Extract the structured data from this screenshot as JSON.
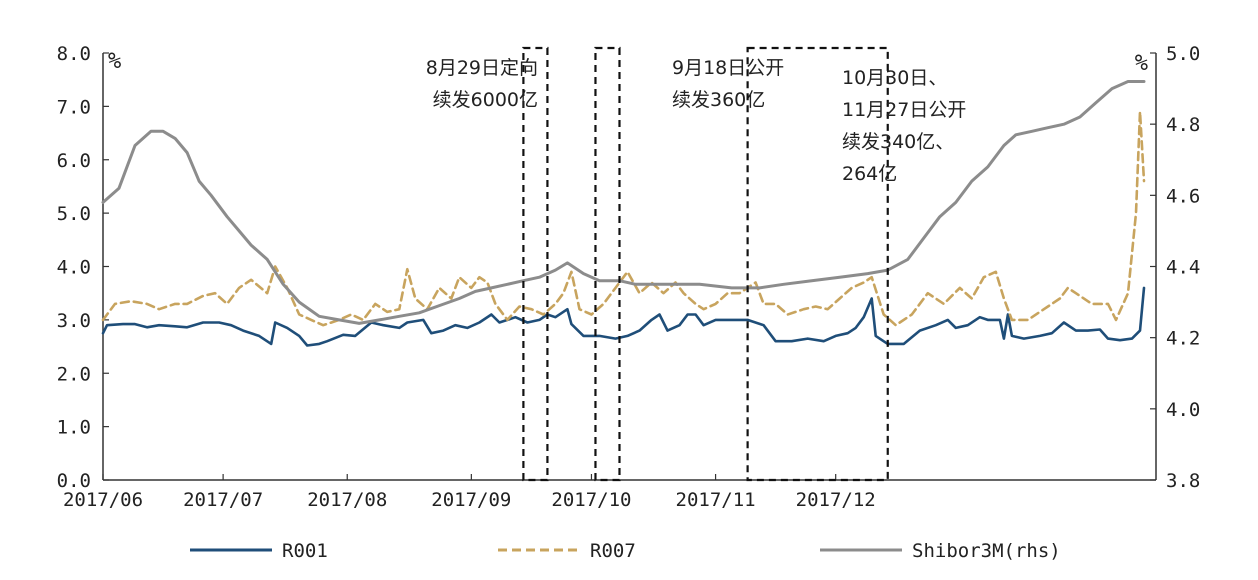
{
  "chart_data": {
    "type": "line",
    "title": "",
    "xlabel": "",
    "ylabel": "%",
    "ylabel_right": "%",
    "ylim": [
      0,
      8
    ],
    "ylim_right": [
      3.8,
      5.0
    ],
    "left_ticks": [
      "0.0",
      "1.0",
      "2.0",
      "3.0",
      "4.0",
      "5.0",
      "6.0",
      "7.0",
      "8.0"
    ],
    "right_ticks": [
      "3.8",
      "4.0",
      "4.2",
      "4.4",
      "4.6",
      "4.8",
      "5.0"
    ],
    "x_ticks": [
      "2017/06",
      "2017/07",
      "2017/08",
      "2017/09",
      "2017/10",
      "2017/11",
      "2017/12"
    ],
    "x_tick_dates": [
      "2017-06-01",
      "2017-07-01",
      "2017-08-01",
      "2017-09-01",
      "2017-10-01",
      "2017-11-01",
      "2017-12-01"
    ],
    "legend_position": "bottom",
    "grid": false,
    "series": [
      {
        "name": "R001",
        "axis": "left",
        "color": "#1f4e79",
        "dash": "solid",
        "points": [
          [
            "2017-06-01",
            2.75
          ],
          [
            "2017-06-02",
            2.9
          ],
          [
            "2017-06-06",
            2.92
          ],
          [
            "2017-06-09",
            2.92
          ],
          [
            "2017-06-12",
            2.86
          ],
          [
            "2017-06-15",
            2.9
          ],
          [
            "2017-06-19",
            2.88
          ],
          [
            "2017-06-22",
            2.86
          ],
          [
            "2017-06-26",
            2.95
          ],
          [
            "2017-06-30",
            2.95
          ],
          [
            "2017-07-03",
            2.9
          ],
          [
            "2017-07-06",
            2.8
          ],
          [
            "2017-07-10",
            2.7
          ],
          [
            "2017-07-13",
            2.55
          ],
          [
            "2017-07-14",
            2.95
          ],
          [
            "2017-07-17",
            2.85
          ],
          [
            "2017-07-20",
            2.7
          ],
          [
            "2017-07-22",
            2.52
          ],
          [
            "2017-07-25",
            2.55
          ],
          [
            "2017-07-27",
            2.6
          ],
          [
            "2017-07-31",
            2.72
          ],
          [
            "2017-08-03",
            2.7
          ],
          [
            "2017-08-07",
            2.95
          ],
          [
            "2017-08-10",
            2.9
          ],
          [
            "2017-08-14",
            2.85
          ],
          [
            "2017-08-16",
            2.95
          ],
          [
            "2017-08-20",
            3.0
          ],
          [
            "2017-08-22",
            2.75
          ],
          [
            "2017-08-25",
            2.8
          ],
          [
            "2017-08-28",
            2.9
          ],
          [
            "2017-08-31",
            2.85
          ],
          [
            "2017-09-03",
            2.95
          ],
          [
            "2017-09-06",
            3.1
          ],
          [
            "2017-09-08",
            2.95
          ],
          [
            "2017-09-10",
            3.0
          ],
          [
            "2017-09-12",
            3.05
          ],
          [
            "2017-09-15",
            2.95
          ],
          [
            "2017-09-18",
            3.0
          ],
          [
            "2017-09-20",
            3.1
          ],
          [
            "2017-09-22",
            3.05
          ],
          [
            "2017-09-25",
            3.2
          ],
          [
            "2017-09-26",
            2.92
          ],
          [
            "2017-09-29",
            2.7
          ],
          [
            "2017-10-03",
            2.7
          ],
          [
            "2017-10-07",
            2.65
          ],
          [
            "2017-10-10",
            2.7
          ],
          [
            "2017-10-13",
            2.8
          ],
          [
            "2017-10-16",
            3.0
          ],
          [
            "2017-10-18",
            3.1
          ],
          [
            "2017-10-20",
            2.8
          ],
          [
            "2017-10-23",
            2.9
          ],
          [
            "2017-10-25",
            3.1
          ],
          [
            "2017-10-27",
            3.1
          ],
          [
            "2017-10-29",
            2.9
          ],
          [
            "2017-11-01",
            3.0
          ],
          [
            "2017-11-05",
            3.0
          ],
          [
            "2017-11-09",
            3.0
          ],
          [
            "2017-11-13",
            2.9
          ],
          [
            "2017-11-16",
            2.6
          ],
          [
            "2017-11-20",
            2.6
          ],
          [
            "2017-11-24",
            2.65
          ],
          [
            "2017-11-28",
            2.6
          ],
          [
            "2017-12-01",
            2.7
          ],
          [
            "2017-12-04",
            2.75
          ],
          [
            "2017-12-06",
            2.85
          ],
          [
            "2017-12-08",
            3.05
          ],
          [
            "2017-12-10",
            3.4
          ],
          [
            "2017-12-11",
            2.7
          ],
          [
            "2017-12-14",
            2.55
          ],
          [
            "2017-12-18",
            2.55
          ],
          [
            "2017-12-22",
            2.8
          ],
          [
            "2017-12-26",
            2.9
          ],
          [
            "2017-12-29",
            3.0
          ],
          [
            "2017-12-31",
            2.85
          ],
          [
            "2018-01-03",
            2.9
          ],
          [
            "2018-01-06",
            3.05
          ],
          [
            "2018-01-08",
            3.0
          ],
          [
            "2018-01-11",
            3.0
          ],
          [
            "2018-01-12",
            2.65
          ],
          [
            "2018-01-13",
            3.1
          ],
          [
            "2018-01-14",
            2.7
          ],
          [
            "2018-01-17",
            2.65
          ],
          [
            "2018-01-21",
            2.7
          ],
          [
            "2018-01-24",
            2.75
          ],
          [
            "2018-01-27",
            2.95
          ],
          [
            "2018-01-30",
            2.8
          ],
          [
            "2018-02-02",
            2.8
          ],
          [
            "2018-02-05",
            2.82
          ],
          [
            "2018-02-07",
            2.65
          ],
          [
            "2018-02-10",
            2.62
          ],
          [
            "2018-02-13",
            2.65
          ],
          [
            "2018-02-15",
            2.8
          ],
          [
            "2018-02-16",
            3.6
          ]
        ]
      },
      {
        "name": "R007",
        "axis": "left",
        "color": "#c8a45e",
        "dash": "dashed",
        "points": [
          [
            "2017-06-01",
            3.0
          ],
          [
            "2017-06-04",
            3.3
          ],
          [
            "2017-06-08",
            3.35
          ],
          [
            "2017-06-12",
            3.3
          ],
          [
            "2017-06-15",
            3.2
          ],
          [
            "2017-06-19",
            3.3
          ],
          [
            "2017-06-22",
            3.3
          ],
          [
            "2017-06-26",
            3.45
          ],
          [
            "2017-06-29",
            3.5
          ],
          [
            "2017-07-02",
            3.3
          ],
          [
            "2017-07-05",
            3.6
          ],
          [
            "2017-07-08",
            3.75
          ],
          [
            "2017-07-12",
            3.5
          ],
          [
            "2017-07-14",
            4.0
          ],
          [
            "2017-07-17",
            3.6
          ],
          [
            "2017-07-20",
            3.1
          ],
          [
            "2017-07-23",
            3.0
          ],
          [
            "2017-07-26",
            2.9
          ],
          [
            "2017-07-30",
            3.0
          ],
          [
            "2017-08-02",
            3.1
          ],
          [
            "2017-08-05",
            3.0
          ],
          [
            "2017-08-08",
            3.3
          ],
          [
            "2017-08-11",
            3.15
          ],
          [
            "2017-08-14",
            3.2
          ],
          [
            "2017-08-16",
            3.95
          ],
          [
            "2017-08-18",
            3.4
          ],
          [
            "2017-08-21",
            3.2
          ],
          [
            "2017-08-24",
            3.6
          ],
          [
            "2017-08-27",
            3.4
          ],
          [
            "2017-08-29",
            3.8
          ],
          [
            "2017-09-01",
            3.6
          ],
          [
            "2017-09-03",
            3.8
          ],
          [
            "2017-09-05",
            3.7
          ],
          [
            "2017-09-07",
            3.3
          ],
          [
            "2017-09-10",
            3.0
          ],
          [
            "2017-09-13",
            3.25
          ],
          [
            "2017-09-16",
            3.2
          ],
          [
            "2017-09-19",
            3.1
          ],
          [
            "2017-09-22",
            3.3
          ],
          [
            "2017-09-24",
            3.5
          ],
          [
            "2017-09-26",
            3.9
          ],
          [
            "2017-09-28",
            3.2
          ],
          [
            "2017-10-01",
            3.1
          ],
          [
            "2017-10-04",
            3.3
          ],
          [
            "2017-10-07",
            3.6
          ],
          [
            "2017-10-10",
            3.9
          ],
          [
            "2017-10-13",
            3.5
          ],
          [
            "2017-10-16",
            3.7
          ],
          [
            "2017-10-19",
            3.5
          ],
          [
            "2017-10-22",
            3.7
          ],
          [
            "2017-10-24",
            3.5
          ],
          [
            "2017-10-27",
            3.3
          ],
          [
            "2017-10-29",
            3.2
          ],
          [
            "2017-11-01",
            3.3
          ],
          [
            "2017-11-04",
            3.5
          ],
          [
            "2017-11-07",
            3.5
          ],
          [
            "2017-11-11",
            3.7
          ],
          [
            "2017-11-13",
            3.3
          ],
          [
            "2017-11-16",
            3.3
          ],
          [
            "2017-11-19",
            3.1
          ],
          [
            "2017-11-23",
            3.2
          ],
          [
            "2017-11-26",
            3.25
          ],
          [
            "2017-11-29",
            3.2
          ],
          [
            "2017-12-02",
            3.4
          ],
          [
            "2017-12-05",
            3.6
          ],
          [
            "2017-12-08",
            3.7
          ],
          [
            "2017-12-10",
            3.8
          ],
          [
            "2017-12-13",
            3.1
          ],
          [
            "2017-12-16",
            2.9
          ],
          [
            "2017-12-20",
            3.1
          ],
          [
            "2017-12-24",
            3.5
          ],
          [
            "2017-12-28",
            3.3
          ],
          [
            "2018-01-01",
            3.6
          ],
          [
            "2018-01-04",
            3.4
          ],
          [
            "2018-01-07",
            3.8
          ],
          [
            "2018-01-10",
            3.9
          ],
          [
            "2018-01-12",
            3.4
          ],
          [
            "2018-01-14",
            3.0
          ],
          [
            "2018-01-18",
            3.0
          ],
          [
            "2018-01-22",
            3.2
          ],
          [
            "2018-01-26",
            3.4
          ],
          [
            "2018-01-28",
            3.6
          ],
          [
            "2018-01-30",
            3.5
          ],
          [
            "2018-02-03",
            3.3
          ],
          [
            "2018-02-07",
            3.3
          ],
          [
            "2018-02-09",
            3.0
          ],
          [
            "2018-02-12",
            3.5
          ],
          [
            "2018-02-14",
            5.0
          ],
          [
            "2018-02-15",
            6.9
          ],
          [
            "2018-02-16",
            5.6
          ]
        ]
      },
      {
        "name": "Shibor3M(rhs)",
        "axis": "right",
        "color": "#8c8c8c",
        "dash": "solid",
        "points": [
          [
            "2017-06-01",
            4.58
          ],
          [
            "2017-06-05",
            4.62
          ],
          [
            "2017-06-09",
            4.74
          ],
          [
            "2017-06-13",
            4.78
          ],
          [
            "2017-06-16",
            4.78
          ],
          [
            "2017-06-19",
            4.76
          ],
          [
            "2017-06-22",
            4.72
          ],
          [
            "2017-06-25",
            4.64
          ],
          [
            "2017-06-28",
            4.6
          ],
          [
            "2017-07-02",
            4.54
          ],
          [
            "2017-07-05",
            4.5
          ],
          [
            "2017-07-08",
            4.46
          ],
          [
            "2017-07-12",
            4.42
          ],
          [
            "2017-07-16",
            4.35
          ],
          [
            "2017-07-20",
            4.3
          ],
          [
            "2017-07-25",
            4.26
          ],
          [
            "2017-07-30",
            4.25
          ],
          [
            "2017-08-04",
            4.24
          ],
          [
            "2017-08-09",
            4.25
          ],
          [
            "2017-08-14",
            4.26
          ],
          [
            "2017-08-19",
            4.27
          ],
          [
            "2017-08-24",
            4.29
          ],
          [
            "2017-08-29",
            4.31
          ],
          [
            "2017-09-02",
            4.33
          ],
          [
            "2017-09-06",
            4.34
          ],
          [
            "2017-09-10",
            4.35
          ],
          [
            "2017-09-14",
            4.36
          ],
          [
            "2017-09-18",
            4.37
          ],
          [
            "2017-09-22",
            4.39
          ],
          [
            "2017-09-25",
            4.41
          ],
          [
            "2017-09-29",
            4.38
          ],
          [
            "2017-10-03",
            4.36
          ],
          [
            "2017-10-08",
            4.36
          ],
          [
            "2017-10-12",
            4.35
          ],
          [
            "2017-10-20",
            4.35
          ],
          [
            "2017-10-28",
            4.35
          ],
          [
            "2017-11-05",
            4.34
          ],
          [
            "2017-11-12",
            4.34
          ],
          [
            "2017-11-18",
            4.35
          ],
          [
            "2017-11-25",
            4.36
          ],
          [
            "2017-12-02",
            4.37
          ],
          [
            "2017-12-09",
            4.38
          ],
          [
            "2017-12-14",
            4.39
          ],
          [
            "2017-12-19",
            4.42
          ],
          [
            "2017-12-23",
            4.48
          ],
          [
            "2017-12-27",
            4.54
          ],
          [
            "2017-12-31",
            4.58
          ],
          [
            "2018-01-04",
            4.64
          ],
          [
            "2018-01-08",
            4.68
          ],
          [
            "2018-01-12",
            4.74
          ],
          [
            "2018-01-15",
            4.77
          ],
          [
            "2018-01-19",
            4.78
          ],
          [
            "2018-01-23",
            4.79
          ],
          [
            "2018-01-27",
            4.8
          ],
          [
            "2018-01-31",
            4.82
          ],
          [
            "2018-02-04",
            4.86
          ],
          [
            "2018-02-08",
            4.9
          ],
          [
            "2018-02-12",
            4.92
          ],
          [
            "2018-02-16",
            4.92
          ]
        ]
      }
    ],
    "annotations": [
      {
        "lines": [
          "8月29日定向",
          "续发6000亿"
        ],
        "box_start": "2017-09-14",
        "box_end": "2017-09-20"
      },
      {
        "lines": [
          "9月18日公开",
          "续发360亿"
        ],
        "box_start": "2017-10-02",
        "box_end": "2017-10-08"
      },
      {
        "lines": [
          "10月30日、",
          "11月27日公开",
          "续发340亿、",
          "264亿"
        ],
        "box_start": "2017-11-09",
        "box_end": "2017-12-14"
      }
    ]
  }
}
